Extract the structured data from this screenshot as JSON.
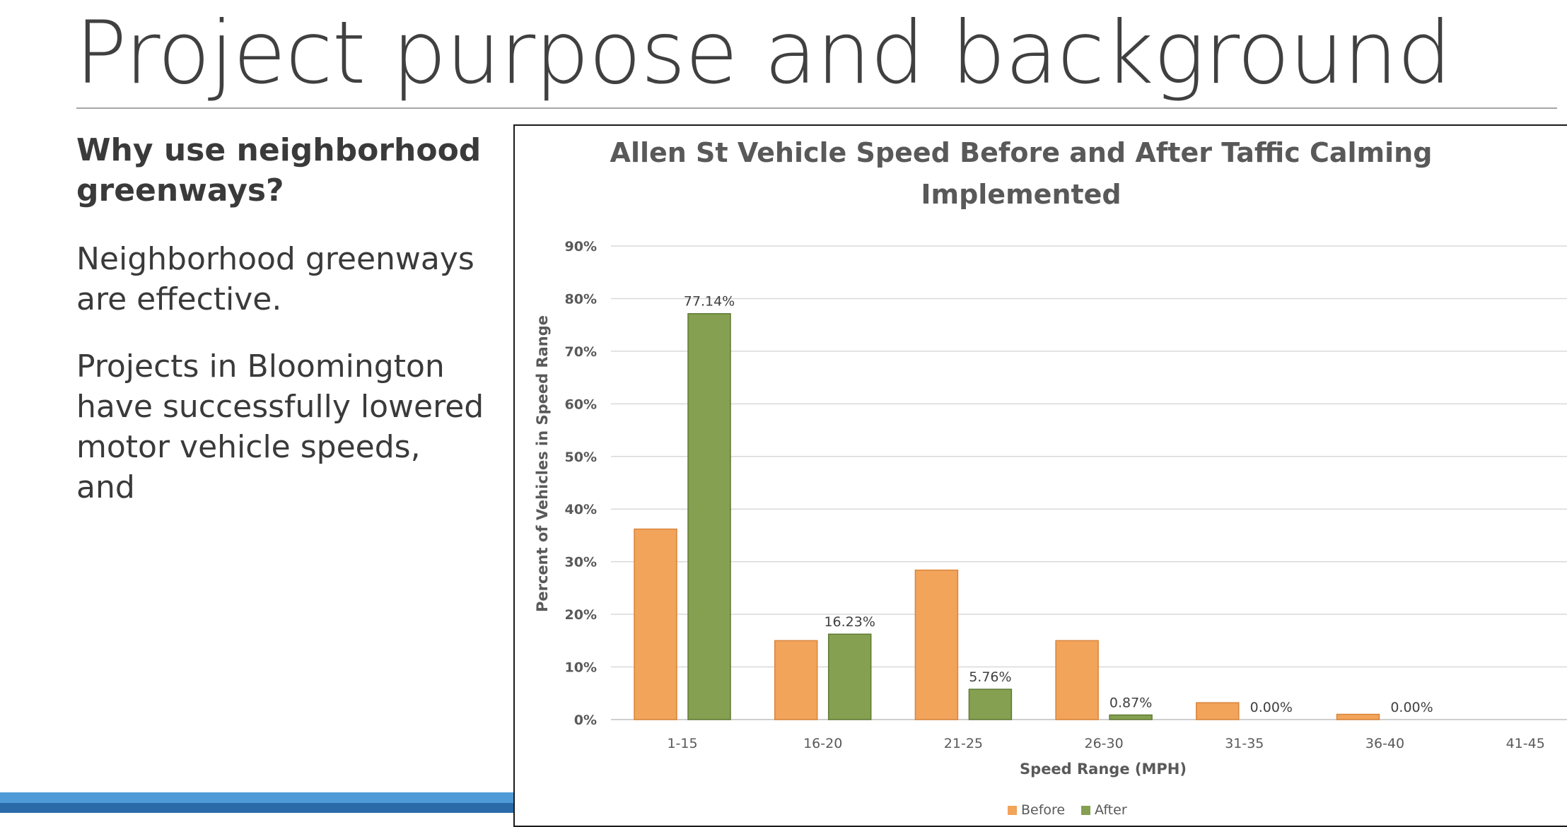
{
  "slide": {
    "title": "Project purpose and background",
    "subheading": "Why use neighborhood greenways?",
    "paragraphs": [
      "Neighborhood greenways are effective.",
      "Projects in Bloomington have successfully lowered motor vehicle speeds, and"
    ]
  },
  "colors": {
    "before": "#f2a45a",
    "after": "#84a050",
    "accent_light": "#4e9bd8",
    "accent_dark": "#2a6aa8"
  },
  "chart_data": {
    "type": "bar",
    "title": "Allen St Vehicle Speed Before and After Taffic Calming Implemented",
    "title_lines": [
      "Allen St Vehicle Speed Before and After Taffic Calming",
      "Implemented"
    ],
    "xlabel": "Speed Range (MPH)",
    "ylabel": "Percent of Vehicles in Speed Range",
    "ylim": [
      0,
      90
    ],
    "yticks": [
      "0%",
      "10%",
      "20%",
      "30%",
      "40%",
      "50%",
      "60%",
      "70%",
      "80%",
      "90%"
    ],
    "grid": true,
    "categories": [
      "1-15",
      "16-20",
      "21-25",
      "26-30",
      "31-35",
      "36-40",
      "41-45"
    ],
    "series": [
      {
        "name": "Before",
        "values": [
          36.2,
          15.0,
          28.4,
          15.0,
          3.2,
          1.0,
          0
        ]
      },
      {
        "name": "After",
        "values": [
          77.14,
          16.23,
          5.76,
          0.87,
          0.0,
          0.0,
          0
        ]
      }
    ],
    "data_labels": [
      "77.14%",
      "16.23%",
      "5.76%",
      "0.87%",
      "0.00%",
      "0.00%"
    ],
    "legend_position": "bottom"
  }
}
